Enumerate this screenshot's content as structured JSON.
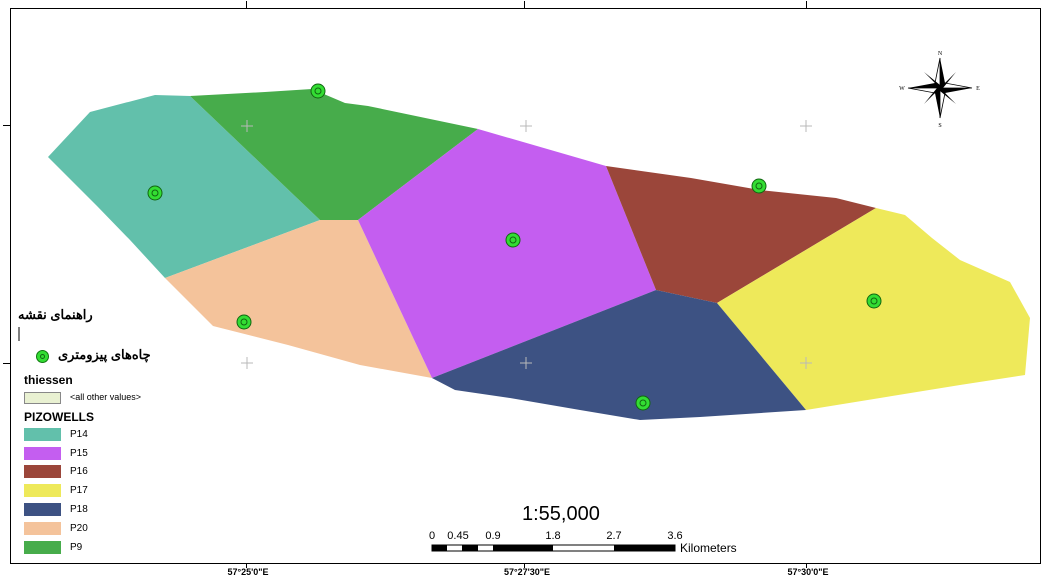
{
  "map": {
    "scale_text": "1:55,000",
    "scale_bar": {
      "ticks": [
        "0",
        "0.45",
        "0.9",
        "1.8",
        "2.7",
        "3.6"
      ],
      "unit": "Kilometers"
    },
    "axis_labels": [
      "57°25'0\"E",
      "57°27'30\"E",
      "57°30'0\"E"
    ],
    "north_arrow": {
      "icon": "north-arrow-compass-icon",
      "labels": {
        "n": "N",
        "s": "S",
        "e": "E",
        "w": "W"
      }
    }
  },
  "legend": {
    "title": "راهنمای نقشه",
    "wells_label": "چاه‌های پیزومتری",
    "wells_icon": "well-point-icon",
    "wells_color": "#33dd33",
    "thiessen_label": "thiessen",
    "other_values": "<all other values>",
    "other_color": "#e9f1d2",
    "pizowells_label": "PIZOWELLS",
    "classes": [
      {
        "label": "P14",
        "color": "#62c0ab"
      },
      {
        "label": "P15",
        "color": "#c45ef0"
      },
      {
        "label": "P16",
        "color": "#9b463a"
      },
      {
        "label": "P17",
        "color": "#eee95a"
      },
      {
        "label": "P18",
        "color": "#3d5283"
      },
      {
        "label": "P20",
        "color": "#f4c39b"
      },
      {
        "label": "P9",
        "color": "#47ac4b"
      }
    ]
  }
}
